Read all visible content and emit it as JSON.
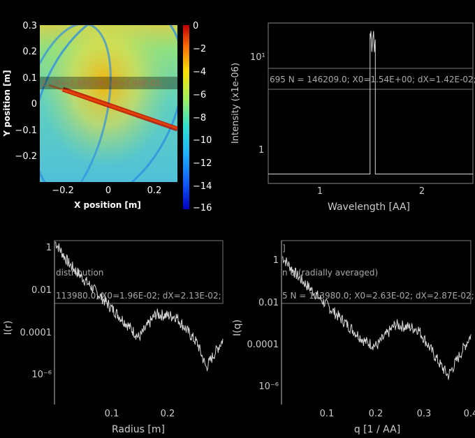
{
  "colors": {
    "background": "#000000",
    "axis": "#cccccc",
    "trace": "#d8d8d8",
    "label": "#bbbbbb"
  },
  "chart_data": [
    {
      "type": "heatmap",
      "xlabel": "X position [m]",
      "ylabel": "Y position [m]",
      "xlim": [
        -0.3,
        0.3
      ],
      "ylim": [
        -0.3,
        0.3
      ],
      "xticks": [
        -0.2,
        0,
        0.2
      ],
      "xtick_labels": [
        "−0.2",
        "0",
        "0.2"
      ],
      "yticks": [
        0.3,
        0.2,
        0.1,
        0,
        -0.1,
        -0.2
      ],
      "ytick_labels": [
        "0.3",
        "0.2",
        "0.1",
        "0",
        "−0.1",
        "−0.2"
      ],
      "colorbar": {
        "range": [
          -16,
          0
        ],
        "ticks": [
          0,
          -2,
          -4,
          -6,
          -8,
          -10,
          -12,
          -14,
          -16
        ],
        "tick_labels": [
          "0",
          "−2",
          "−4",
          "−6",
          "−8",
          "−10",
          "−12",
          "−14",
          "−16"
        ]
      },
      "stats_text": "2; Y0=-1.65E-04; dY=1.99E-02;"
    },
    {
      "type": "line",
      "xlabel": "Wavelength [AA]",
      "ylabel": "Intensity (x1e-06)",
      "xlim": [
        0.55,
        2.5
      ],
      "yscale": "log",
      "xticks": [
        1,
        2
      ],
      "xtick_labels": [
        "1",
        "2"
      ],
      "yticks": [
        1,
        10
      ],
      "ytick_labels": [
        "1",
        "10¹"
      ],
      "baseline": 0.55,
      "peak": {
        "x_start": 1.52,
        "x_end": 1.57,
        "value": 18
      },
      "stats_text": "695 N = 146209.0; X0=1.54E+00; dX=1.42E-02;"
    },
    {
      "type": "line",
      "xlabel": "Radius [m]",
      "ylabel": "I(r)",
      "xlim": [
        0,
        0.295
      ],
      "yscale": "log",
      "xticks": [
        0.1,
        0.2
      ],
      "xtick_labels": [
        "0.1",
        "0.2"
      ],
      "yticks": [
        1,
        0.01,
        0.0001,
        1e-06
      ],
      "ytick_labels": [
        "1",
        "0.01",
        "0.0001",
        "10⁻⁶"
      ],
      "legend_line": "distribution",
      "stats_text": "113980.0; X0=1.96E-02; dX=2.13E-02;"
    },
    {
      "type": "line",
      "xlabel": "q [1 / AA]",
      "ylabel": "I(q)",
      "xlim": [
        0,
        0.4
      ],
      "yscale": "log",
      "xticks": [
        0.1,
        0.2,
        0.3,
        0.4
      ],
      "xtick_labels": [
        "0.1",
        "0.2",
        "0.3",
        "0.4"
      ],
      "yticks": [
        1,
        0.01,
        0.0001,
        1e-06
      ],
      "ytick_labels": [
        "1",
        "0.01",
        "0.0001",
        "10⁻⁶"
      ],
      "title_fragment": "]",
      "legend_line": "n q (radially averaged)",
      "stats_text": "5 N = 113980.0; X0=2.63E-02; dX=2.87E-02;"
    }
  ]
}
